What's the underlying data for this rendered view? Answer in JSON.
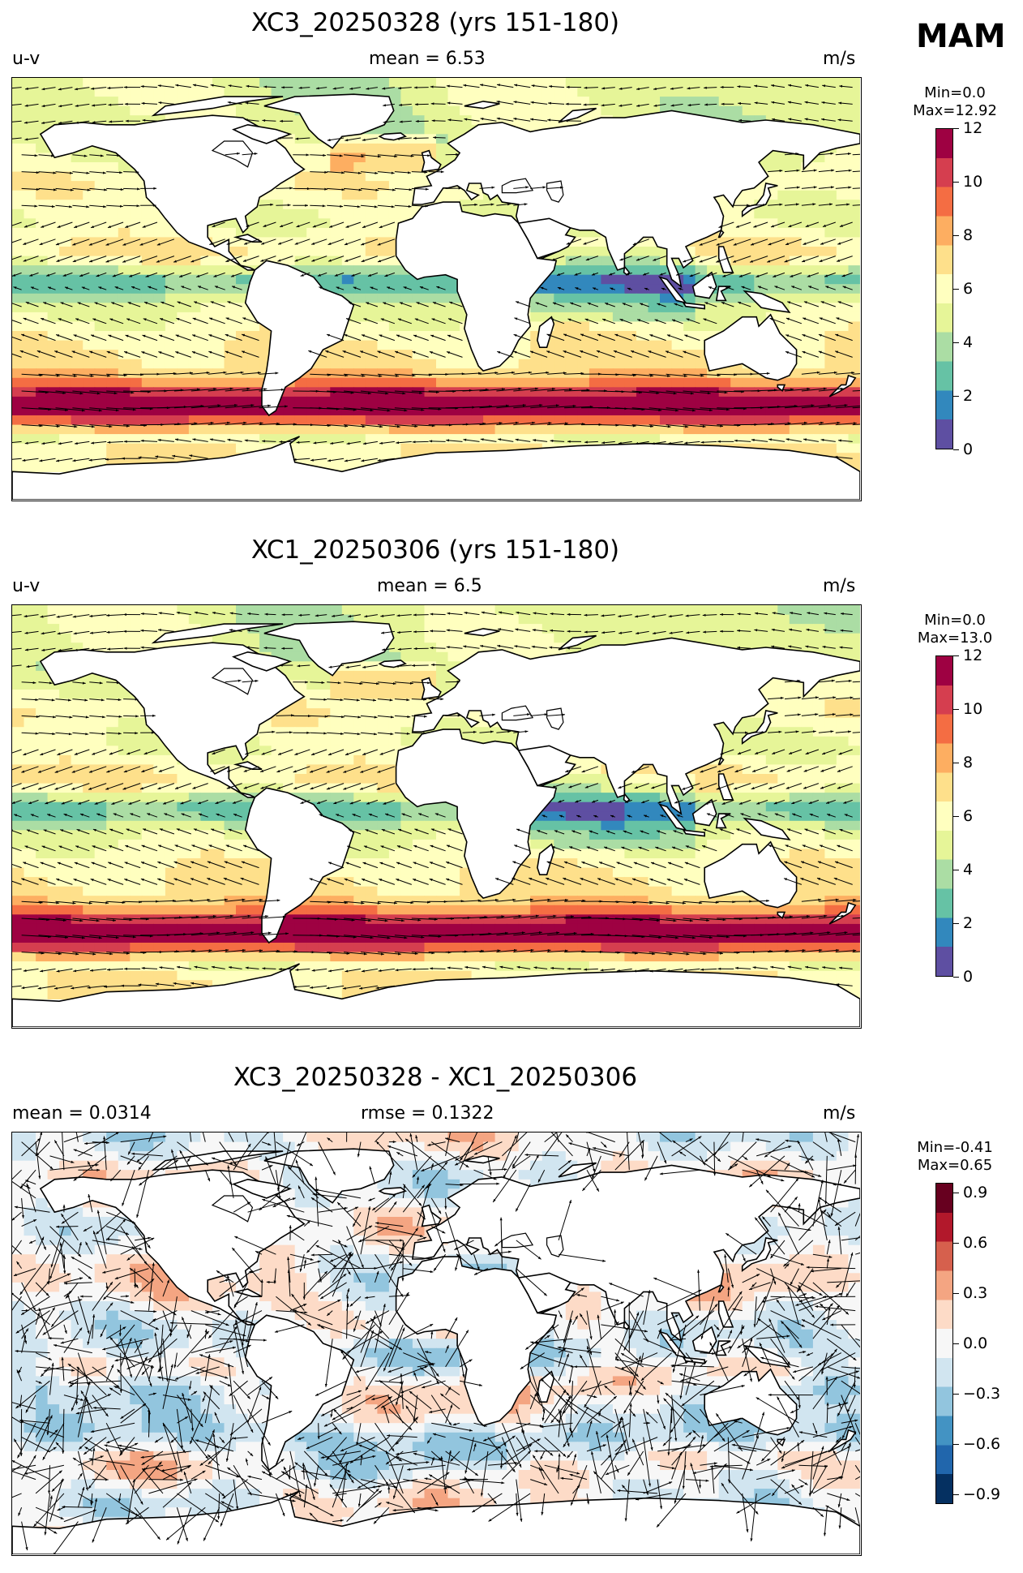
{
  "season": "MAM",
  "panels": [
    {
      "title": "XC3_20250328 (yrs 151-180)",
      "left_label": "u-v",
      "center_label": "mean = 6.53",
      "right_label": "m/s",
      "colorbar": {
        "min_label": "Min=0.0",
        "max_label": "Max=12.92",
        "ticks": [
          "12",
          "10",
          "8",
          "6",
          "4",
          "2",
          "0"
        ],
        "palette": "spectral"
      }
    },
    {
      "title": "XC1_20250306 (yrs 151-180)",
      "left_label": "u-v",
      "center_label": "mean = 6.5",
      "right_label": "m/s",
      "colorbar": {
        "min_label": "Min=0.0",
        "max_label": "Max=13.0",
        "ticks": [
          "12",
          "10",
          "8",
          "6",
          "4",
          "2",
          "0"
        ],
        "palette": "spectral"
      }
    },
    {
      "title": "XC3_20250328 - XC1_20250306",
      "left_label": "mean = 0.0314",
      "center_label": "rmse = 0.1322",
      "right_label": "m/s",
      "colorbar": {
        "min_label": "Min=-0.41",
        "max_label": "Max=0.65",
        "ticks": [
          "0.9",
          "0.6",
          "0.3",
          "0.0",
          "−0.3",
          "−0.6",
          "−0.9"
        ],
        "palette": "diverging"
      }
    }
  ],
  "colors": {
    "spectral": [
      "#5e4fa2",
      "#3288bd",
      "#66c2a5",
      "#abdda4",
      "#e6f598",
      "#ffffbf",
      "#fee08b",
      "#fdae61",
      "#f46d43",
      "#d53e4f",
      "#9e0142"
    ],
    "diverging": [
      "#053061",
      "#2166ac",
      "#4393c3",
      "#92c5de",
      "#d1e5f0",
      "#f7f7f7",
      "#fddbc7",
      "#f4a582",
      "#d6604d",
      "#b2182b",
      "#67001f"
    ]
  }
}
